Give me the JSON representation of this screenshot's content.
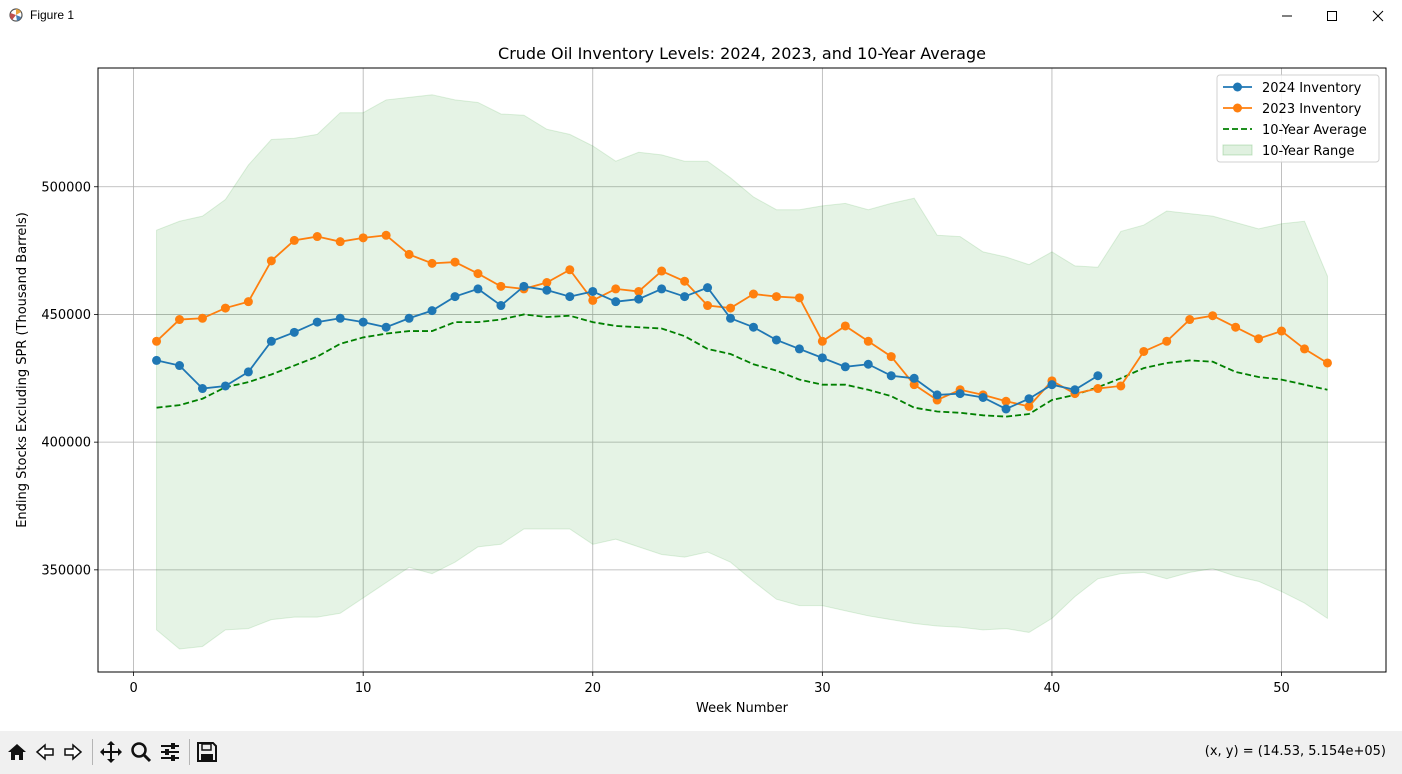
{
  "window": {
    "title": "Figure 1",
    "icons": {
      "app": "matplotlib-icon",
      "minimize": "minimize-icon",
      "maximize": "maximize-icon",
      "close": "close-icon"
    }
  },
  "toolbar": {
    "buttons": [
      "home-icon",
      "back-icon",
      "forward-icon",
      "pan-icon",
      "zoom-icon",
      "configure-subplots-icon",
      "save-icon"
    ],
    "coords": "(x, y) = (14.53, 5.154e+05)"
  },
  "chart_data": {
    "type": "line",
    "title": "Crude Oil Inventory Levels: 2024, 2023, and 10-Year Average",
    "xlabel": "Week Number",
    "ylabel": "Ending Stocks Excluding SPR (Thousand Barrels)",
    "xlim": [
      -1.55,
      54.55
    ],
    "ylim": [
      310000,
      546500
    ],
    "xticks": [
      0,
      10,
      20,
      30,
      40,
      50
    ],
    "xtick_labels": [
      "0",
      "10",
      "20",
      "30",
      "40",
      "50"
    ],
    "yticks": [
      350000,
      400000,
      450000,
      500000
    ],
    "ytick_labels": [
      "350000",
      "400000",
      "450000",
      "500000"
    ],
    "grid": true,
    "legend_position": "top-right",
    "colors": {
      "s2024": "#1f77b4",
      "s2023": "#ff7f0e",
      "avg": "#008000",
      "range": "#2ca02c"
    },
    "series": [
      {
        "name": "2024 Inventory",
        "x": [
          1,
          2,
          3,
          4,
          5,
          6,
          7,
          8,
          9,
          10,
          11,
          12,
          13,
          14,
          15,
          16,
          17,
          18,
          19,
          20,
          21,
          22,
          23,
          24,
          25,
          26,
          27,
          28,
          29,
          30,
          31,
          32,
          33,
          34,
          35,
          36,
          37,
          38,
          39,
          40,
          41,
          42
        ],
        "y": [
          432000,
          430000,
          421000,
          422000,
          427500,
          439500,
          443000,
          447000,
          448500,
          447000,
          445000,
          448500,
          451500,
          457000,
          460000,
          453500,
          461000,
          459500,
          457000,
          459000,
          455000,
          456000,
          460000,
          457000,
          460500,
          448500,
          445000,
          440000,
          436500,
          433000,
          429500,
          430500,
          426000,
          425000,
          418500,
          419000,
          417500,
          413000,
          417000,
          422500,
          420500,
          426000
        ]
      },
      {
        "name": "2023 Inventory",
        "x": [
          1,
          2,
          3,
          4,
          5,
          6,
          7,
          8,
          9,
          10,
          11,
          12,
          13,
          14,
          15,
          16,
          17,
          18,
          19,
          20,
          21,
          22,
          23,
          24,
          25,
          26,
          27,
          28,
          29,
          30,
          31,
          32,
          33,
          34,
          35,
          36,
          37,
          38,
          39,
          40,
          41,
          42,
          43,
          44,
          45,
          46,
          47,
          48,
          49,
          50,
          51,
          52
        ],
        "y": [
          439500,
          448000,
          448500,
          452500,
          455000,
          471000,
          479000,
          480500,
          478500,
          480000,
          481000,
          473500,
          470000,
          470500,
          466000,
          461000,
          460000,
          462500,
          467500,
          455500,
          460000,
          459000,
          467000,
          463000,
          453500,
          452500,
          458000,
          457000,
          456500,
          439500,
          445500,
          439500,
          433500,
          422500,
          416500,
          420500,
          418500,
          416000,
          414000,
          424000,
          419000,
          421000,
          422000,
          435500,
          439500,
          448000,
          449500,
          445000,
          440500,
          443500,
          436500,
          431000
        ]
      },
      {
        "name": "10-Year Average",
        "style": "dashed",
        "x": [
          1,
          2,
          3,
          4,
          5,
          6,
          7,
          8,
          9,
          10,
          11,
          12,
          13,
          14,
          15,
          16,
          17,
          18,
          19,
          20,
          21,
          22,
          23,
          24,
          25,
          26,
          27,
          28,
          29,
          30,
          31,
          32,
          33,
          34,
          35,
          36,
          37,
          38,
          39,
          40,
          41,
          42,
          43,
          44,
          45,
          46,
          47,
          48,
          49,
          50,
          51,
          52
        ],
        "y": [
          413500,
          414500,
          417000,
          421500,
          423500,
          426500,
          430000,
          433500,
          438500,
          441000,
          442500,
          443500,
          443500,
          447000,
          447000,
          448000,
          450000,
          449000,
          449500,
          447000,
          445500,
          445000,
          444500,
          441500,
          436500,
          434500,
          430500,
          428000,
          424500,
          422500,
          422500,
          420500,
          418000,
          413500,
          412000,
          411500,
          410500,
          410000,
          411000,
          416500,
          418500,
          421500,
          425000,
          429000,
          431000,
          432000,
          431500,
          427500,
          425500,
          424500,
          422500,
          420500
        ]
      },
      {
        "name": "10-Year Range",
        "style": "fill",
        "x": [
          1,
          2,
          3,
          4,
          5,
          6,
          7,
          8,
          9,
          10,
          11,
          12,
          13,
          14,
          15,
          16,
          17,
          18,
          19,
          20,
          21,
          22,
          23,
          24,
          25,
          26,
          27,
          28,
          29,
          30,
          31,
          32,
          33,
          34,
          35,
          36,
          37,
          38,
          39,
          40,
          41,
          42,
          43,
          44,
          45,
          46,
          47,
          48,
          49,
          50,
          51,
          52
        ],
        "upper": [
          483000,
          486500,
          488500,
          495000,
          508500,
          518500,
          519000,
          520500,
          529000,
          529000,
          534000,
          535000,
          536000,
          534000,
          533000,
          528500,
          528000,
          522500,
          520500,
          516000,
          510000,
          513500,
          512500,
          510000,
          510000,
          503500,
          496000,
          491000,
          491000,
          492500,
          493500,
          491000,
          493500,
          495500,
          481000,
          480500,
          474500,
          472500,
          469500,
          474500,
          469000,
          468500,
          482500,
          485000,
          490500,
          489500,
          488500,
          486000,
          483500,
          485500,
          486500,
          465000
        ],
        "lower": [
          326500,
          319000,
          320000,
          326500,
          327000,
          330500,
          331500,
          331500,
          333000,
          339000,
          345000,
          351000,
          348500,
          353000,
          359000,
          360000,
          366000,
          366000,
          366000,
          360000,
          362000,
          359000,
          356000,
          355000,
          357000,
          353000,
          345500,
          338500,
          336000,
          336000,
          334000,
          332000,
          330500,
          329000,
          328000,
          327500,
          326500,
          327000,
          325500,
          331000,
          339500,
          346500,
          348500,
          349000,
          346500,
          349000,
          350500,
          347500,
          345500,
          341500,
          337000,
          331000
        ]
      }
    ]
  }
}
